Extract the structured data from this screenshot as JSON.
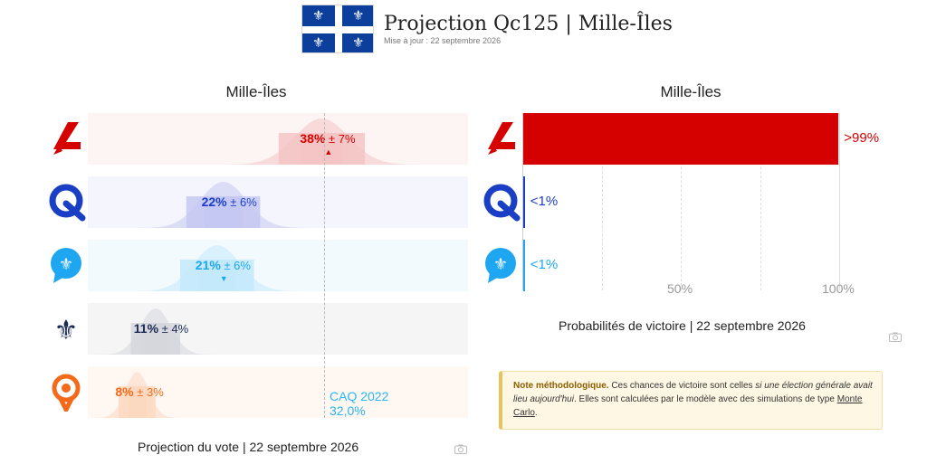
{
  "header": {
    "title": "Projection Qc125 | Mille-Îles",
    "updated": "Mise à jour : 22 septembre 2026",
    "flag_symbol": "⚜"
  },
  "vote_panel": {
    "title": "Mille-Îles",
    "caption": "Projection du vote | 22 septembre 2026",
    "reference_label": "CAQ 2022",
    "reference_value": "32,0%",
    "reference_data_value": 32.0
  },
  "prob_panel": {
    "title": "Mille-Îles",
    "caption": "Probabilités de victoire | 22 septembre 2026",
    "ticks": [
      "50%",
      "100%"
    ]
  },
  "parties": [
    {
      "key": "plq",
      "logo": "liberal-logo-icon",
      "color": "#d50000",
      "light": "#f5c4c4",
      "bg": "#fdf4f4",
      "value": 38,
      "moe": 7,
      "value_label": "38%",
      "moe_label": "± 7%",
      "trend": "▲",
      "prob": 99.5,
      "prob_label": ">99%"
    },
    {
      "key": "pq",
      "logo": "pq-logo-icon",
      "color": "#1a3fc4",
      "light": "#c5c8f2",
      "bg": "#f5f5fd",
      "value": 22,
      "moe": 6,
      "value_label": "22%",
      "moe_label": "± 6%",
      "trend": "",
      "prob": 0.5,
      "prob_label": "<1%"
    },
    {
      "key": "caq",
      "logo": "caq-logo-icon",
      "color": "#1ea7f0",
      "light": "#c3e9fb",
      "bg": "#f3fafe",
      "value": 21,
      "moe": 6,
      "value_label": "21%",
      "moe_label": "± 6%",
      "trend": "▼",
      "prob": 0.5,
      "prob_label": "<1%"
    },
    {
      "key": "pcq",
      "logo": "pcq-logo-icon",
      "color": "#1c2a56",
      "light": "#d6d7dc",
      "bg": "#f5f5f5",
      "value": 11,
      "moe": 4,
      "value_label": "11%",
      "moe_label": "± 4%",
      "trend": "",
      "prob": null,
      "prob_label": ""
    },
    {
      "key": "qs",
      "logo": "qs-logo-icon",
      "color": "#f36b1a",
      "light": "#fbd9c1",
      "bg": "#fff7f2",
      "value": 8,
      "moe": 3,
      "value_label": "8%",
      "moe_label": "± 3%",
      "trend": "",
      "prob": null,
      "prob_label": ""
    }
  ],
  "note": {
    "lead": "Note méthodologique.",
    "text1": " Ces chances de victoire sont celles ",
    "emph": "si une élection générale avait lieu aujourd'hui",
    "text2": ". Elles sont calculées par le modèle avec des simulations de type ",
    "link": "Monte Carlo",
    "text3": "."
  },
  "chart_data": [
    {
      "type": "bar",
      "title": "Projection du vote | 22 septembre 2026",
      "categories": [
        "Parti libéral du Québec",
        "Parti Québécois",
        "Coalition Avenir Québec",
        "Parti conservateur du Québec",
        "Québec solidaire"
      ],
      "values": [
        38,
        22,
        21,
        11,
        8
      ],
      "margin_of_error": [
        7,
        6,
        6,
        4,
        3
      ],
      "reference": {
        "label": "CAQ 2022",
        "value": 32.0
      },
      "unit": "%"
    },
    {
      "type": "bar",
      "title": "Probabilités de victoire | 22 septembre 2026",
      "categories": [
        "Parti libéral du Québec",
        "Parti Québécois",
        "Coalition Avenir Québec"
      ],
      "values": [
        99.5,
        0.5,
        0.5
      ],
      "labels": [
        ">99%",
        "<1%",
        "<1%"
      ],
      "xlim": [
        0,
        100
      ],
      "unit": "%"
    }
  ]
}
